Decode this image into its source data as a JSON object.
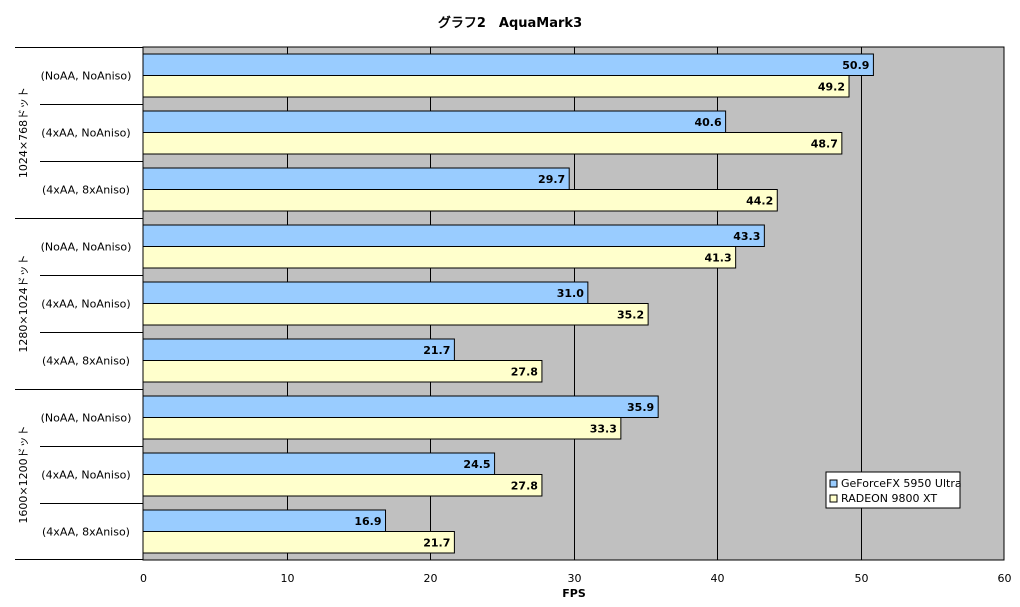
{
  "chart_data": {
    "type": "bar",
    "orientation": "horizontal",
    "title": "グラフ2　AquaMark3",
    "xlabel": "FPS",
    "ylabel": "",
    "xlim": [
      0,
      60
    ],
    "x_ticks": [
      "0",
      "10",
      "20",
      "30",
      "40",
      "50",
      "60"
    ],
    "grid": "vertical",
    "groups": [
      {
        "label": "1024×768ドット",
        "categories": [
          "(NoAA, NoAniso)",
          "(4xAA, NoAniso)",
          "(4xAA, 8xAniso)"
        ]
      },
      {
        "label": "1280×1024ドット",
        "categories": [
          "(NoAA, NoAniso)",
          "(4xAA, NoAniso)",
          "(4xAA, 8xAniso)"
        ]
      },
      {
        "label": "1600×1200ドット",
        "categories": [
          "(NoAA, NoAniso)",
          "(4xAA, NoAniso)",
          "(4xAA, 8xAniso)"
        ]
      }
    ],
    "series": [
      {
        "name": "GeForceFX 5950 Ultra",
        "color": "#99ccff",
        "values": [
          50.9,
          40.6,
          29.7,
          43.3,
          31.0,
          21.7,
          35.9,
          24.5,
          16.9
        ],
        "labels": [
          "50.9",
          "40.6",
          "29.7",
          "43.3",
          "31.0",
          "21.7",
          "35.9",
          "24.5",
          "16.9"
        ]
      },
      {
        "name": "RADEON 9800 XT",
        "color": "#ffffcc",
        "values": [
          49.2,
          48.7,
          44.2,
          41.3,
          35.2,
          27.8,
          33.3,
          27.8,
          21.7
        ],
        "labels": [
          "49.2",
          "48.7",
          "44.2",
          "41.3",
          "35.2",
          "27.8",
          "33.3",
          "27.8",
          "21.7"
        ]
      }
    ],
    "legend": "bottom-right",
    "plot_background": "#c0c0c0"
  }
}
